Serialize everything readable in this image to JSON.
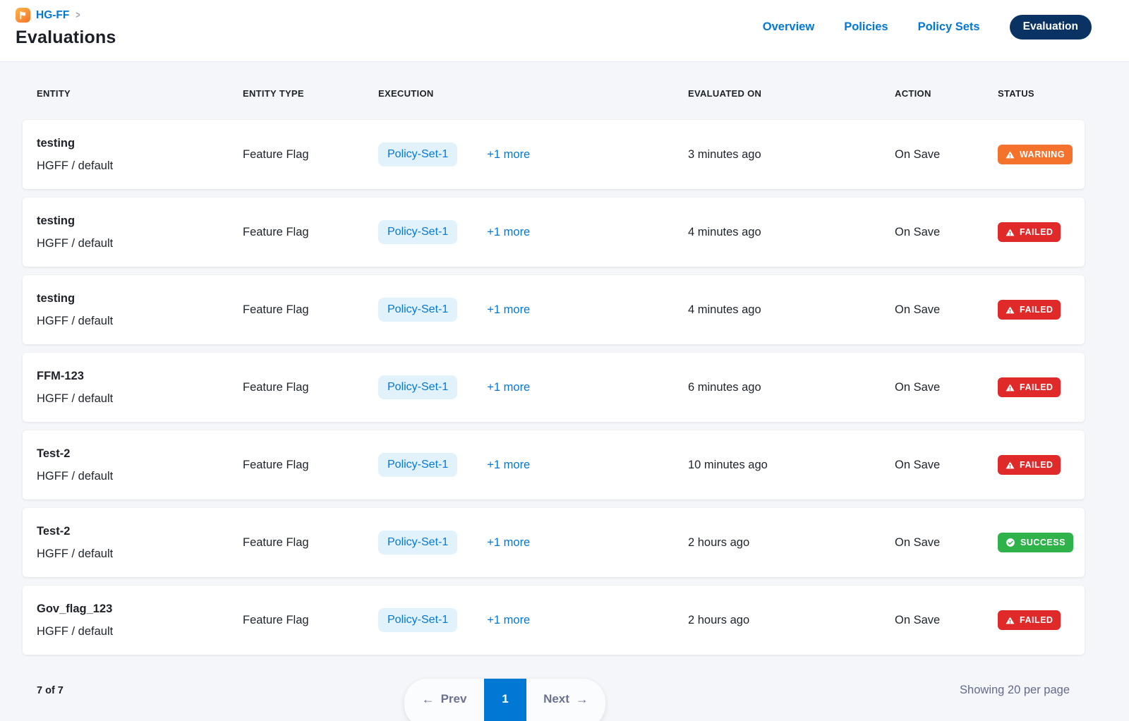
{
  "header": {
    "breadcrumb": {
      "project": "HG-FF",
      "chevron": ">"
    },
    "title": "Evaluations",
    "nav": {
      "overview": "Overview",
      "policies": "Policies",
      "policy_sets": "Policy Sets",
      "evaluation": "Evaluation"
    }
  },
  "table": {
    "columns": {
      "entity": "ENTITY",
      "entity_type": "ENTITY TYPE",
      "execution": "EXECUTION",
      "evaluated_on": "EVALUATED ON",
      "action": "ACTION",
      "status": "STATUS"
    },
    "rows": [
      {
        "entity": "testing",
        "entity_id": "HGFF / default",
        "entity_type": "Feature Flag",
        "execution_chip": "Policy-Set-1",
        "execution_more": "+1 more",
        "evaluated_on": "3 minutes ago",
        "action": "On Save",
        "status": "WARNING",
        "status_type": "warning"
      },
      {
        "entity": "testing",
        "entity_id": "HGFF / default",
        "entity_type": "Feature Flag",
        "execution_chip": "Policy-Set-1",
        "execution_more": "+1 more",
        "evaluated_on": "4 minutes ago",
        "action": "On Save",
        "status": "FAILED",
        "status_type": "failed"
      },
      {
        "entity": "testing",
        "entity_id": "HGFF / default",
        "entity_type": "Feature Flag",
        "execution_chip": "Policy-Set-1",
        "execution_more": "+1 more",
        "evaluated_on": "4 minutes ago",
        "action": "On Save",
        "status": "FAILED",
        "status_type": "failed"
      },
      {
        "entity": "FFM-123",
        "entity_id": "HGFF / default",
        "entity_type": "Feature Flag",
        "execution_chip": "Policy-Set-1",
        "execution_more": "+1 more",
        "evaluated_on": "6 minutes ago",
        "action": "On Save",
        "status": "FAILED",
        "status_type": "failed"
      },
      {
        "entity": "Test-2",
        "entity_id": "HGFF / default",
        "entity_type": "Feature Flag",
        "execution_chip": "Policy-Set-1",
        "execution_more": "+1 more",
        "evaluated_on": "10 minutes ago",
        "action": "On Save",
        "status": "FAILED",
        "status_type": "failed"
      },
      {
        "entity": "Test-2",
        "entity_id": "HGFF / default",
        "entity_type": "Feature Flag",
        "execution_chip": "Policy-Set-1",
        "execution_more": "+1 more",
        "evaluated_on": "2 hours ago",
        "action": "On Save",
        "status": "SUCCESS",
        "status_type": "success"
      },
      {
        "entity": "Gov_flag_123",
        "entity_id": "HGFF / default",
        "entity_type": "Feature Flag",
        "execution_chip": "Policy-Set-1",
        "execution_more": "+1 more",
        "evaluated_on": "2 hours ago",
        "action": "On Save",
        "status": "FAILED",
        "status_type": "failed"
      }
    ]
  },
  "footer": {
    "total": "7 of 7",
    "prev_label": "Prev",
    "prev_arrow": "←",
    "page": "1",
    "next_label": "Next",
    "next_arrow": "→",
    "per_page": "Showing 20 per page"
  },
  "icons": {
    "breadcrumb": "flag-icon",
    "warning_failed_badge": "warning-triangle-icon",
    "success_badge": "check-circle-icon",
    "breadcrumb_separator": "chevron-right-icon",
    "prev": "arrow-left-icon",
    "next": "arrow-right-icon"
  },
  "colors": {
    "accent_blue": "#0278D5",
    "nav_pill_navy": "#0A3364",
    "warning_orange": "#F4722B",
    "failed_red": "#E02929",
    "success_green": "#2FB24A",
    "chip_bg": "#E2F2FC",
    "page_bg": "#F4F6F9"
  }
}
